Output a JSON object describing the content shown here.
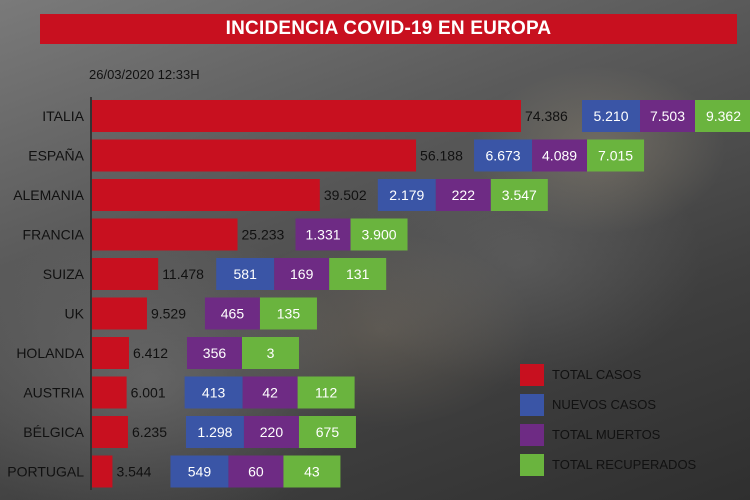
{
  "title": "INCIDENCIA COVID-19 EN EUROPA",
  "timestamp": "26/03/2020 12:33H",
  "colors": {
    "total": "#c8101f",
    "nuevos": "#3a55a6",
    "muertos": "#6e2b84",
    "recuperados": "#6ab43e"
  },
  "legend": [
    {
      "key": "total",
      "label": "TOTAL CASOS"
    },
    {
      "key": "nuevos",
      "label": "NUEVOS CASOS"
    },
    {
      "key": "muertos",
      "label": "TOTAL MUERTOS"
    },
    {
      "key": "recuperados",
      "label": "TOTAL RECUPERADOS"
    }
  ],
  "chart_data": {
    "type": "bar",
    "title": "INCIDENCIA COVID-19 EN EUROPA",
    "categories": [
      "ITALIA",
      "ESPAÑA",
      "ALEMANIA",
      "FRANCIA",
      "SUIZA",
      "UK",
      "HOLANDA",
      "AUSTRIA",
      "BÉLGICA",
      "PORTUGAL"
    ],
    "series": [
      {
        "name": "TOTAL CASOS",
        "values": [
          74386,
          56188,
          39502,
          25233,
          11478,
          9529,
          6412,
          6001,
          6235,
          3544
        ],
        "labels": [
          "74.386",
          "56.188",
          "39.502",
          "25.233",
          "11.478",
          "9.529",
          "6.412",
          "6.001",
          "6.235",
          "3.544"
        ]
      },
      {
        "name": "NUEVOS CASOS",
        "values": [
          5210,
          6673,
          2179,
          null,
          581,
          null,
          null,
          413,
          1298,
          549
        ],
        "labels": [
          "5.210",
          "6.673",
          "2.179",
          null,
          "581",
          null,
          null,
          "413",
          "1.298",
          "549"
        ]
      },
      {
        "name": "TOTAL MUERTOS",
        "values": [
          7503,
          4089,
          222,
          1331,
          169,
          465,
          356,
          42,
          220,
          60
        ],
        "labels": [
          "7.503",
          "4.089",
          "222",
          "1.331",
          "169",
          "465",
          "356",
          "42",
          "220",
          "60"
        ]
      },
      {
        "name": "TOTAL RECUPERADOS",
        "values": [
          9362,
          7015,
          3547,
          3900,
          131,
          135,
          3,
          112,
          675,
          43
        ],
        "labels": [
          "9.362",
          "7.015",
          "3.547",
          "3.900",
          "131",
          "135",
          "3",
          "112",
          "675",
          "43"
        ]
      }
    ]
  }
}
